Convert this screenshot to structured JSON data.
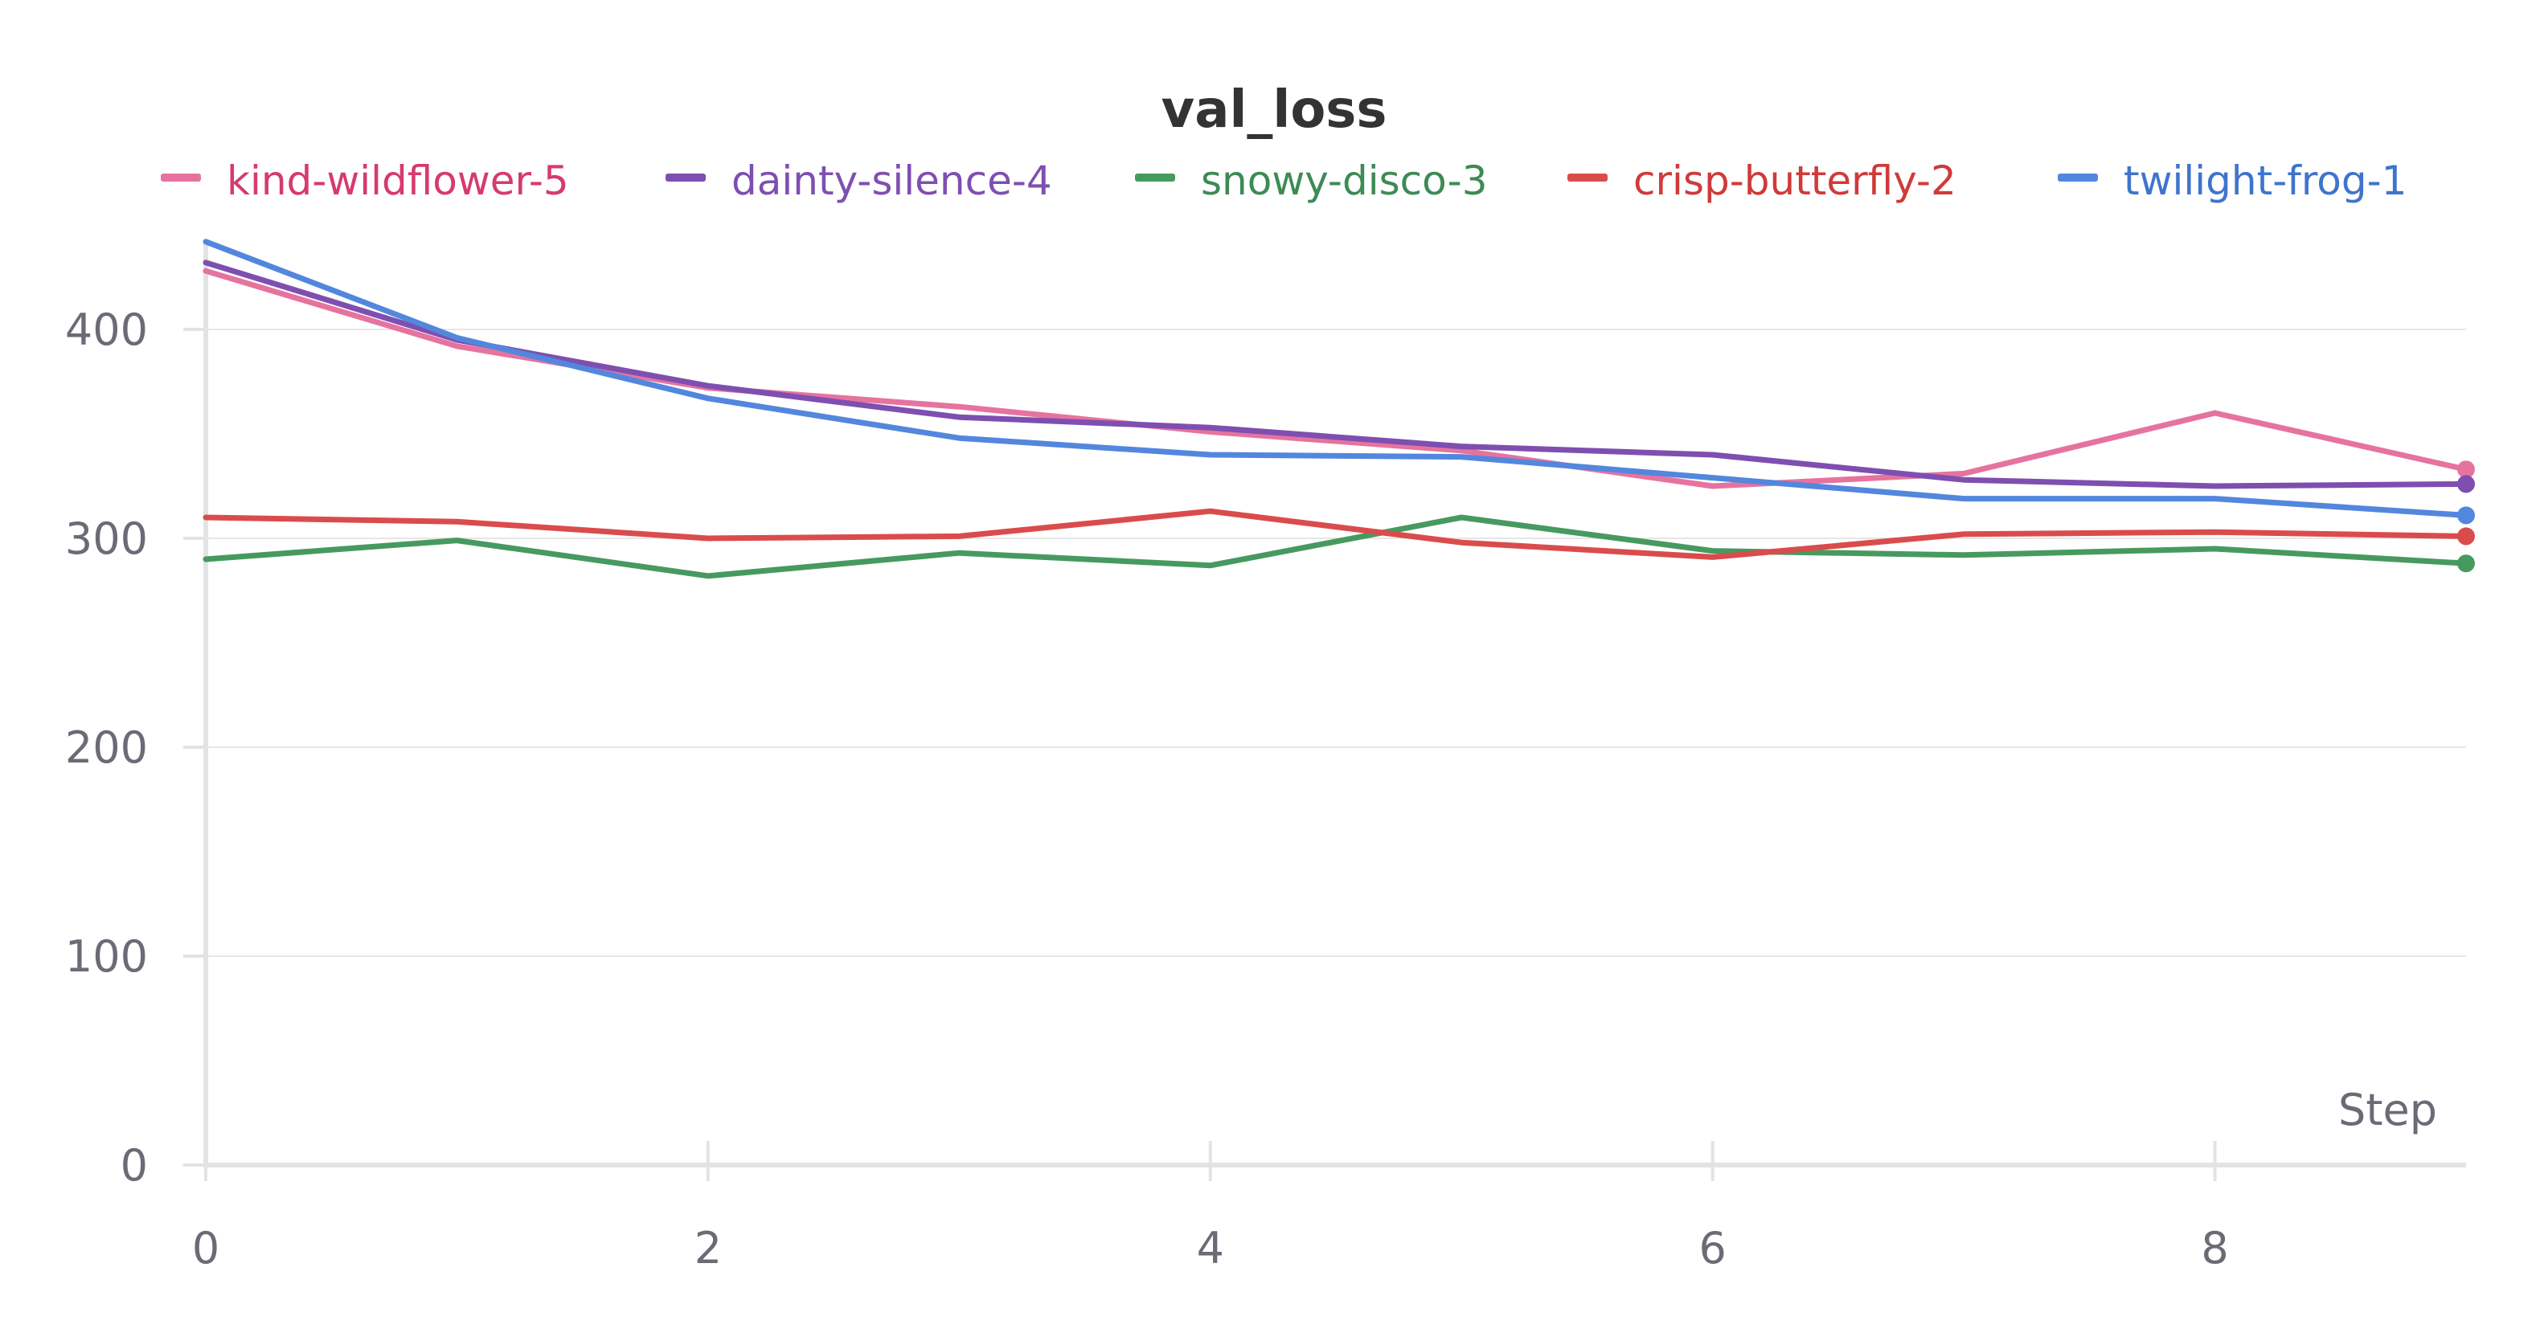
{
  "chart_data": {
    "type": "line",
    "title": "val_loss",
    "xlabel": "Step",
    "ylabel": "",
    "xlim": [
      0,
      9
    ],
    "ylim": [
      0,
      440
    ],
    "x_ticks": [
      0,
      2,
      4,
      6,
      8
    ],
    "y_ticks": [
      0,
      100,
      200,
      300,
      400
    ],
    "grid": true,
    "legend_position": "top",
    "x": [
      0,
      1,
      2,
      3,
      4,
      5,
      6,
      7,
      8,
      9
    ],
    "series": [
      {
        "name": "kind-wildflower-5",
        "color": "#e6739f",
        "label_color": "#d63a6e",
        "values": [
          428,
          392,
          372,
          363,
          351,
          342,
          325,
          331,
          360,
          333
        ]
      },
      {
        "name": "dainty-silence-4",
        "color": "#7e4fb0",
        "label_color": "#7e4fb0",
        "values": [
          432,
          395,
          373,
          358,
          353,
          344,
          340,
          328,
          325,
          326
        ]
      },
      {
        "name": "snowy-disco-3",
        "color": "#479a5f",
        "label_color": "#3d8a55",
        "values": [
          290,
          299,
          282,
          293,
          287,
          310,
          294,
          292,
          295,
          288
        ]
      },
      {
        "name": "crisp-butterfly-2",
        "color": "#da4c4c",
        "label_color": "#d03a3a",
        "values": [
          310,
          308,
          300,
          301,
          313,
          298,
          291,
          302,
          303,
          301
        ]
      },
      {
        "name": "twilight-frog-1",
        "color": "#5387dd",
        "label_color": "#3f74cc",
        "values": [
          442,
          396,
          367,
          348,
          340,
          339,
          329,
          319,
          319,
          311
        ]
      }
    ]
  }
}
